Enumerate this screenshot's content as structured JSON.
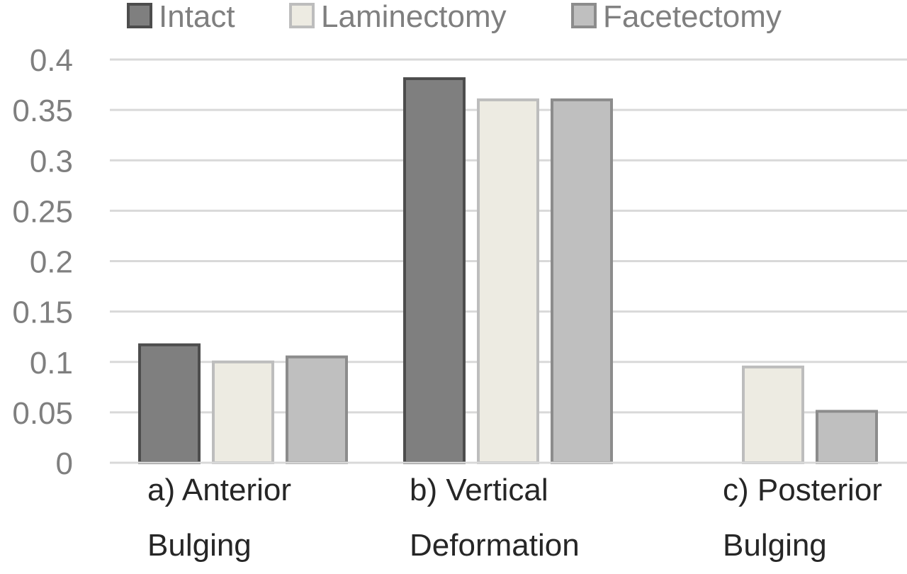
{
  "chart_data": {
    "type": "bar",
    "title": "",
    "xlabel": "",
    "ylabel": "",
    "ylim": [
      0,
      0.4
    ],
    "yticks": [
      "0",
      "0.05",
      "0.1",
      "0.15",
      "0.2",
      "0.25",
      "0.3",
      "0.35",
      "0.4"
    ],
    "grid": true,
    "legend_position": "top",
    "categories": [
      [
        "a) Anterior",
        "Bulging"
      ],
      [
        "b) Vertical",
        "Deformation"
      ],
      [
        "c) Posterior",
        "Bulging"
      ]
    ],
    "series": [
      {
        "name": "Intact",
        "values": [
          0.117,
          0.381,
          0
        ],
        "color": "#7f7f7f",
        "stroke": "#4d4d4d"
      },
      {
        "name": "Laminectomy",
        "values": [
          0.1,
          0.36,
          0.095
        ],
        "color": "#edebe2",
        "stroke": "#bdbdbd"
      },
      {
        "name": "Facetectomy",
        "values": [
          0.105,
          0.36,
          0.051
        ],
        "color": "#bfbfbf",
        "stroke": "#8c8c8c"
      }
    ],
    "colors": {
      "gridline": "#d9d9d9",
      "axis": "#d9d9d9",
      "tick_label": "#7f7f7f",
      "category_label": "#262626",
      "legend_text": "#7f7f7f"
    }
  }
}
